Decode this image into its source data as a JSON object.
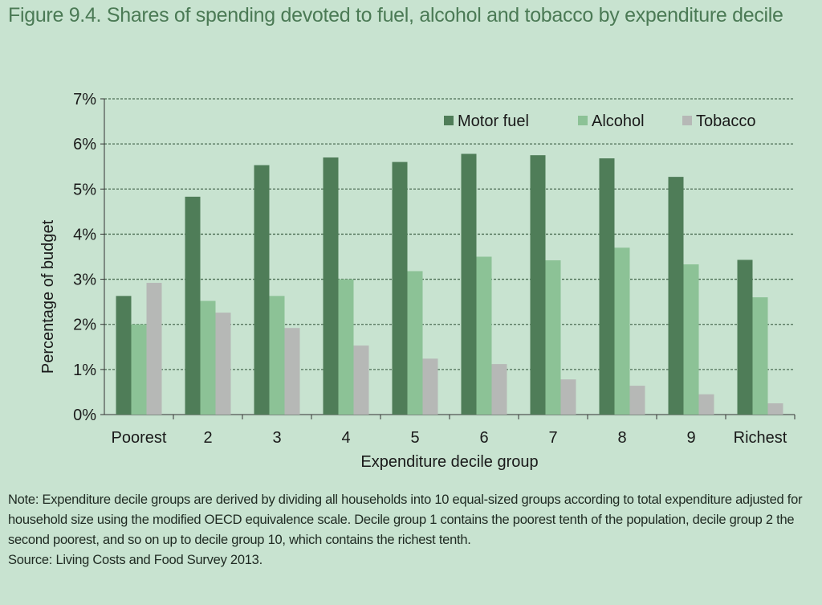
{
  "title": "Figure 9.4. Shares of spending devoted to fuel, alcohol and tobacco by expenditure decile",
  "note": "Note: Expenditure decile groups are derived by dividing all households into 10 equal-sized groups according to total expenditure adjusted for household size using the modified OECD equivalence scale. Decile group 1 contains the poorest tenth of the population, decile group 2 the second poorest, and so on up to decile group 10, which contains the richest tenth.",
  "source": "Source: Living Costs and Food Survey 2013.",
  "colors": {
    "background": "#c8e3d0",
    "motor_fuel": "#4f7d58",
    "alcohol": "#8cc296",
    "tobacco": "#b6b8b6",
    "title": "#4b7a55"
  },
  "chart_data": {
    "type": "bar",
    "title": "Shares of spending devoted to fuel, alcohol and tobacco by expenditure decile",
    "xlabel": "Expenditure decile group",
    "ylabel": "Percentage of budget",
    "ylim": [
      0,
      7
    ],
    "yticks": [
      "0%",
      "1%",
      "2%",
      "3%",
      "4%",
      "5%",
      "6%",
      "7%"
    ],
    "grid": true,
    "legend_position": "top-right",
    "categories": [
      "Poorest",
      "2",
      "3",
      "4",
      "5",
      "6",
      "7",
      "8",
      "9",
      "Richest"
    ],
    "series": [
      {
        "name": "Motor fuel",
        "color": "#4f7d58",
        "values": [
          2.63,
          4.83,
          5.53,
          5.7,
          5.6,
          5.78,
          5.75,
          5.68,
          5.27,
          3.43
        ]
      },
      {
        "name": "Alcohol",
        "color": "#8cc296",
        "values": [
          2.0,
          2.52,
          2.63,
          3.0,
          3.18,
          3.5,
          3.42,
          3.7,
          3.33,
          2.6
        ]
      },
      {
        "name": "Tobacco",
        "color": "#b6b8b6",
        "values": [
          2.92,
          2.26,
          1.92,
          1.53,
          1.24,
          1.12,
          0.78,
          0.64,
          0.45,
          0.25
        ]
      }
    ]
  }
}
